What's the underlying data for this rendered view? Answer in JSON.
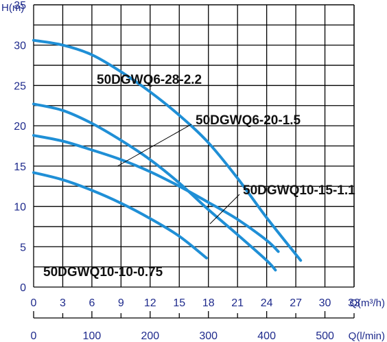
{
  "chart_data": {
    "type": "line",
    "title": "",
    "ylabel": "H(m)",
    "xlabel": "Q(m³/h)",
    "xlabel_secondary": "Q(l/min)",
    "xlim": [
      0,
      33
    ],
    "ylim": [
      0,
      35
    ],
    "x_ticks": [
      0,
      3,
      6,
      9,
      12,
      15,
      18,
      21,
      24,
      27,
      30,
      33
    ],
    "y_ticks": [
      0,
      5,
      10,
      15,
      20,
      25,
      30,
      35
    ],
    "x2_ticks": [
      0,
      100,
      200,
      300,
      400,
      500
    ],
    "grid": true,
    "colors": {
      "curve": "#1f8fd6",
      "tick_text": "#1e2a8c",
      "grid": "#000000"
    },
    "series": [
      {
        "name": "50DGWQ6-28-2.2",
        "x": [
          0,
          3,
          6,
          9,
          12,
          15,
          18,
          21,
          24,
          27.5
        ],
        "y": [
          30.6,
          30.0,
          28.8,
          26.7,
          24.2,
          21.3,
          17.9,
          13.5,
          8.6,
          3.3
        ]
      },
      {
        "name": "50DGWQ6-20-1.5",
        "x": [
          0,
          3,
          6,
          9,
          12,
          15,
          18,
          21,
          24,
          24.9
        ],
        "y": [
          22.7,
          21.9,
          20.3,
          18.2,
          15.8,
          12.9,
          9.6,
          6.5,
          3.3,
          2.1
        ]
      },
      {
        "name": "50DGWQ10-15-1.1",
        "x": [
          0,
          3,
          6,
          9,
          12,
          15,
          18,
          21,
          24,
          25.2
        ],
        "y": [
          18.8,
          18.1,
          17.0,
          15.8,
          14.3,
          12.5,
          10.5,
          8.4,
          5.8,
          4.4
        ]
      },
      {
        "name": "50DGWQ10-10-0.75",
        "x": [
          0,
          3,
          6,
          9,
          12,
          15,
          17.8
        ],
        "y": [
          14.2,
          13.3,
          12.0,
          10.4,
          8.5,
          6.3,
          3.6
        ]
      }
    ]
  }
}
